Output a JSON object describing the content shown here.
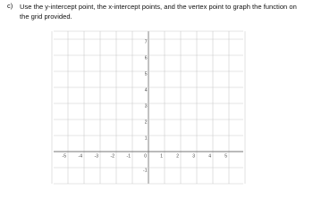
{
  "question": {
    "label": "c)",
    "text": "Use the y-intercept point, the x-intercept points, and the vertex point to graph the function on the grid provided."
  },
  "grid": {
    "x_labels": [
      "-5",
      "-4",
      "-3",
      "-2",
      "-1",
      "0",
      "1",
      "2",
      "3",
      "4",
      "5"
    ],
    "y_labels": [
      "7",
      "6",
      "5",
      "4",
      "3",
      "2",
      "1",
      "-1"
    ]
  }
}
